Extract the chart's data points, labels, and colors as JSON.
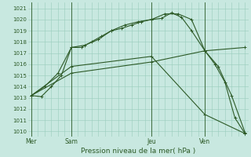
{
  "bg_color": "#c8e8e0",
  "grid_color": "#99ccbb",
  "line_color": "#2d5a27",
  "title": "Pression niveau de la mer( hPa )",
  "ylim": [
    1009.5,
    1021.5
  ],
  "yticks": [
    1010,
    1011,
    1012,
    1013,
    1014,
    1015,
    1016,
    1017,
    1018,
    1019,
    1020,
    1021
  ],
  "day_labels": [
    "Mer",
    "Sam",
    "Jeu",
    "Ven"
  ],
  "day_positions": [
    0,
    24,
    72,
    104
  ],
  "xlim": [
    -2,
    130
  ],
  "series": [
    {
      "x": [
        0,
        6,
        12,
        18,
        24,
        30,
        36,
        42,
        48,
        54,
        60,
        66,
        72,
        78,
        84,
        90,
        96,
        104,
        110,
        116,
        122,
        128
      ],
      "y": [
        1013.2,
        1013.1,
        1014.0,
        1015.0,
        1017.5,
        1017.5,
        1018.0,
        1018.5,
        1019.0,
        1019.2,
        1019.5,
        1019.8,
        1020.0,
        1020.1,
        1020.6,
        1020.2,
        1019.0,
        1017.2,
        1016.0,
        1014.4,
        1011.2,
        1009.8
      ]
    },
    {
      "x": [
        0,
        8,
        16,
        24,
        32,
        40,
        48,
        56,
        64,
        72,
        80,
        88,
        96,
        104,
        112,
        120,
        128
      ],
      "y": [
        1013.2,
        1014.0,
        1015.2,
        1017.5,
        1017.7,
        1018.2,
        1019.0,
        1019.5,
        1019.8,
        1020.0,
        1020.5,
        1020.5,
        1020.0,
        1017.2,
        1015.8,
        1013.2,
        1009.9
      ]
    },
    {
      "x": [
        0,
        24,
        72,
        104,
        128
      ],
      "y": [
        1013.2,
        1015.2,
        1016.2,
        1017.2,
        1017.5
      ]
    },
    {
      "x": [
        0,
        24,
        72,
        104,
        128
      ],
      "y": [
        1013.2,
        1015.8,
        1016.7,
        1011.5,
        1009.8
      ]
    }
  ]
}
